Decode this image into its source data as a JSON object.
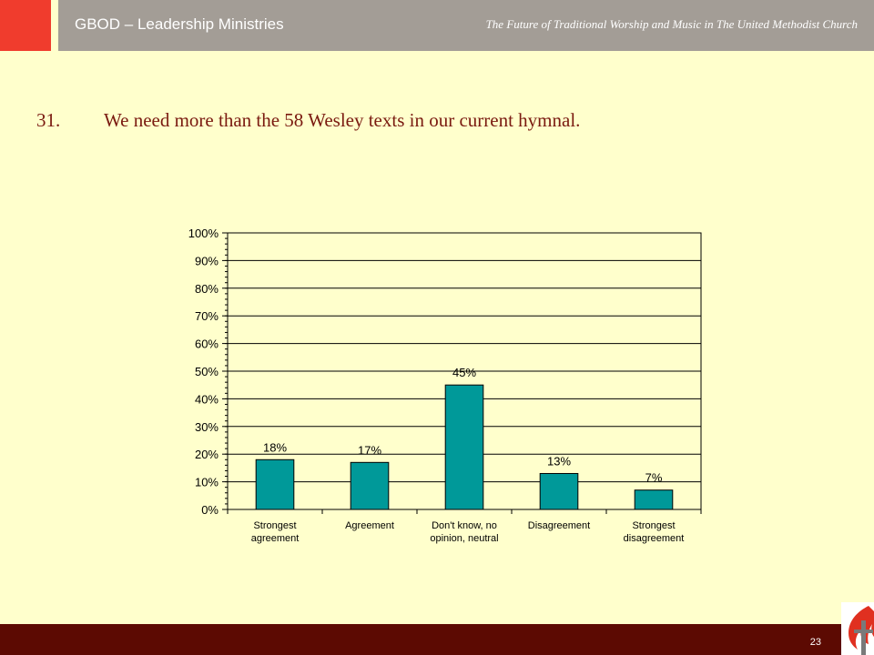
{
  "header": {
    "org_name": "GBOD – Leadership Ministries",
    "subtitle": "The Future of Traditional Worship and Music in The United Methodist Church"
  },
  "question": {
    "number": "31.",
    "text": "We need more than the 58 Wesley texts in our current hymnal."
  },
  "chart_data": {
    "type": "bar",
    "title": "",
    "xlabel": "",
    "ylabel": "",
    "categories": [
      [
        "Strongest",
        "agreement"
      ],
      [
        "Agreement"
      ],
      [
        "Don't know, no",
        "opinion, neutral"
      ],
      [
        "Disagreement"
      ],
      [
        "Strongest",
        "disagreement"
      ]
    ],
    "values": [
      18,
      17,
      45,
      13,
      7
    ],
    "value_labels": [
      "18%",
      "17%",
      "45%",
      "13%",
      "7%"
    ],
    "ylim": [
      0,
      100
    ],
    "yticks": [
      0,
      10,
      20,
      30,
      40,
      50,
      60,
      70,
      80,
      90,
      100
    ],
    "ytick_labels": [
      "0%",
      "10%",
      "20%",
      "30%",
      "40%",
      "50%",
      "60%",
      "70%",
      "80%",
      "90%",
      "100%"
    ],
    "grid": true,
    "legend": false,
    "bar_color": "#009999"
  },
  "footer": {
    "page_number": "23"
  },
  "logo": {
    "icon": "cross-and-flame-icon"
  },
  "colors": {
    "background": "#ffffcc",
    "accent": "#f03c2d",
    "header_bar": "#a39d96",
    "footer": "#5c0a02",
    "question_text": "#7a1a10"
  }
}
